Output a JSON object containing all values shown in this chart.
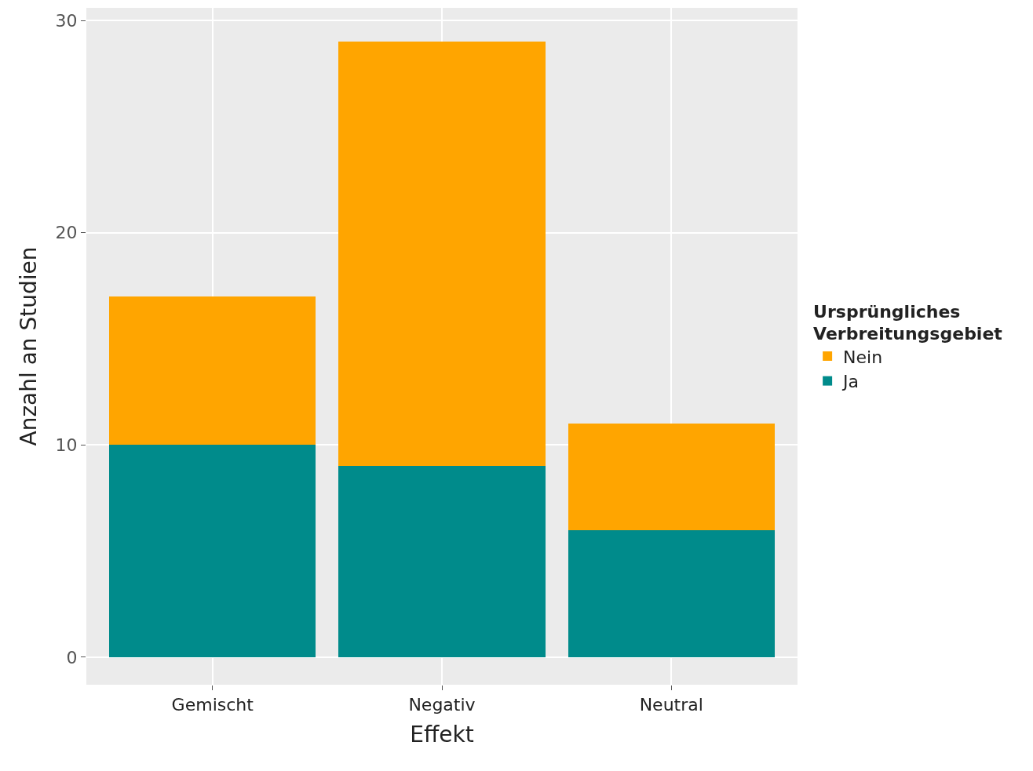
{
  "chart_data": {
    "type": "bar",
    "stacked": true,
    "xlabel": "Effekt",
    "ylabel": "Anzahl an Studien",
    "legend_title": "Ursprüngliches\nVerbreitungsgebiet",
    "categories": [
      "Gemischt",
      "Negativ",
      "Neutral"
    ],
    "series": [
      {
        "name": "Ja",
        "color": "#008b8b",
        "values": [
          10,
          9,
          6
        ]
      },
      {
        "name": "Nein",
        "color": "#ffa500",
        "values": [
          7,
          20,
          5
        ]
      }
    ],
    "ylim": [
      -1.3,
      30.6
    ],
    "yticks": [
      0,
      10,
      20,
      30
    ],
    "grid": true,
    "legend": "right"
  }
}
